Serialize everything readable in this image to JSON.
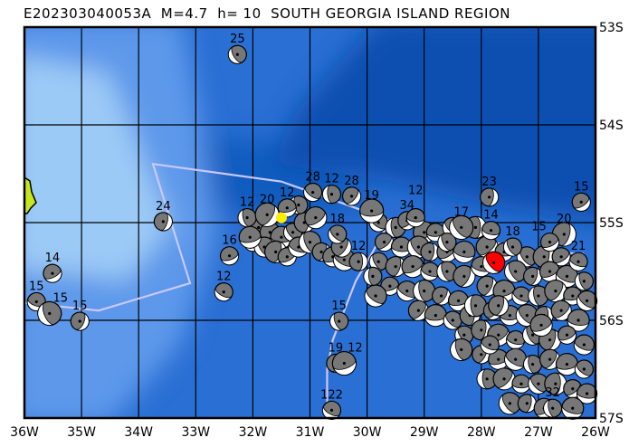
{
  "title": "E202303040053A  M=4.7  h= 10  SOUTH GEORGIA ISLAND REGION",
  "map": {
    "lon_range_west": [
      36,
      26
    ],
    "lat_range_south": [
      53,
      57
    ],
    "lon_labels": [
      "36W",
      "35W",
      "34W",
      "33W",
      "32W",
      "31W",
      "30W",
      "29W",
      "28W",
      "27W",
      "26W"
    ],
    "lat_labels": [
      "53S",
      "54S",
      "55S",
      "56S",
      "57S"
    ],
    "colors": {
      "deep": "#0a4fb0",
      "mid": "#2a6fd4",
      "shallow": "#5d98ea",
      "shelf": "#9ccaf6",
      "land": "#c8e61e",
      "boundary": "#c8c8f8",
      "epicenter": "#ffee00",
      "current_event": "#ff0000",
      "mechanism_fill": "#777777"
    },
    "epicenter": {
      "lon_w": 31.5,
      "lat_s": 54.95
    },
    "current_event": {
      "lon_w": 27.78,
      "lat_s": 55.41
    },
    "events_labeled": [
      [
        32.27,
        53.28,
        "25"
      ],
      [
        33.57,
        54.99,
        "24"
      ],
      [
        35.51,
        55.52,
        "14"
      ],
      [
        35.79,
        55.81,
        "15"
      ],
      [
        35.56,
        55.93,
        "15"
      ],
      [
        35.03,
        56.01,
        "15"
      ],
      [
        32.41,
        55.34,
        "16"
      ],
      [
        32.51,
        55.71,
        "12"
      ],
      [
        32.1,
        54.95,
        "12"
      ],
      [
        31.75,
        54.92,
        "20"
      ],
      [
        31.4,
        54.85,
        "12"
      ],
      [
        30.95,
        54.69,
        "28"
      ],
      [
        30.62,
        54.71,
        "12"
      ],
      [
        30.27,
        54.73,
        "28"
      ],
      [
        29.92,
        54.88,
        "19"
      ],
      [
        30.52,
        55.12,
        "18"
      ],
      [
        30.15,
        55.4,
        "12"
      ],
      [
        29.3,
        54.98,
        "34"
      ],
      [
        29.15,
        54.95,
        "12"
      ],
      [
        28.35,
        55.05,
        "17"
      ],
      [
        27.86,
        54.74,
        "23"
      ],
      [
        26.25,
        54.79,
        "15"
      ],
      [
        27.83,
        55.08,
        "14"
      ],
      [
        27.45,
        55.25,
        "18"
      ],
      [
        26.55,
        55.12,
        "20"
      ],
      [
        26.8,
        55.2,
        "15"
      ],
      [
        26.3,
        55.4,
        "21"
      ],
      [
        30.49,
        56.01,
        "15"
      ],
      [
        30.55,
        56.44,
        "19"
      ],
      [
        30.4,
        56.44,
        "12"
      ],
      [
        30.62,
        56.92,
        "122"
      ],
      [
        26.75,
        56.9,
        "32"
      ]
    ],
    "events": [
      [
        31.9,
        55.05
      ],
      [
        31.7,
        55.1
      ],
      [
        31.5,
        55.15
      ],
      [
        31.3,
        55.1
      ],
      [
        31.1,
        55.0
      ],
      [
        30.9,
        54.95
      ],
      [
        32.0,
        55.2
      ],
      [
        31.8,
        55.25
      ],
      [
        31.6,
        55.3
      ],
      [
        31.4,
        55.35
      ],
      [
        31.2,
        55.25
      ],
      [
        31.0,
        55.2
      ],
      [
        30.8,
        55.3
      ],
      [
        30.6,
        55.35
      ],
      [
        30.4,
        55.38
      ],
      [
        31.2,
        54.82
      ],
      [
        30.45,
        55.25
      ],
      [
        32.05,
        55.15
      ],
      [
        29.8,
        55.0
      ],
      [
        29.5,
        55.05
      ],
      [
        29.0,
        55.1
      ],
      [
        28.8,
        55.1
      ],
      [
        28.5,
        55.05
      ],
      [
        28.1,
        55.05
      ],
      [
        29.7,
        55.2
      ],
      [
        29.4,
        55.25
      ],
      [
        29.1,
        55.25
      ],
      [
        28.9,
        55.3
      ],
      [
        28.6,
        55.3
      ],
      [
        28.3,
        55.3
      ],
      [
        29.8,
        55.4
      ],
      [
        29.5,
        55.45
      ],
      [
        29.2,
        55.45
      ],
      [
        28.9,
        55.5
      ],
      [
        28.6,
        55.5
      ],
      [
        28.3,
        55.55
      ],
      [
        29.6,
        55.65
      ],
      [
        29.3,
        55.7
      ],
      [
        29.0,
        55.7
      ],
      [
        28.7,
        55.75
      ],
      [
        28.4,
        55.8
      ],
      [
        29.85,
        55.75
      ],
      [
        29.9,
        55.55
      ],
      [
        29.1,
        55.9
      ],
      [
        28.8,
        55.95
      ],
      [
        28.5,
        56.0
      ],
      [
        28.2,
        55.95
      ],
      [
        27.9,
        55.25
      ],
      [
        27.6,
        55.3
      ],
      [
        27.2,
        55.35
      ],
      [
        26.9,
        55.35
      ],
      [
        26.6,
        55.35
      ],
      [
        28.0,
        55.45
      ],
      [
        27.4,
        55.5
      ],
      [
        27.1,
        55.55
      ],
      [
        26.8,
        55.5
      ],
      [
        26.5,
        55.55
      ],
      [
        26.2,
        55.6
      ],
      [
        27.9,
        55.65
      ],
      [
        27.6,
        55.7
      ],
      [
        27.3,
        55.75
      ],
      [
        27.0,
        55.75
      ],
      [
        26.7,
        55.7
      ],
      [
        26.4,
        55.75
      ],
      [
        26.15,
        55.8
      ],
      [
        28.1,
        55.85
      ],
      [
        27.8,
        55.9
      ],
      [
        27.5,
        55.95
      ],
      [
        27.2,
        55.95
      ],
      [
        26.9,
        55.95
      ],
      [
        26.6,
        55.9
      ],
      [
        26.3,
        56.0
      ],
      [
        28.3,
        56.15
      ],
      [
        28.0,
        56.1
      ],
      [
        27.7,
        56.15
      ],
      [
        27.4,
        56.2
      ],
      [
        27.1,
        56.15
      ],
      [
        26.8,
        56.2
      ],
      [
        26.5,
        56.15
      ],
      [
        26.2,
        56.25
      ],
      [
        28.35,
        56.3
      ],
      [
        28.0,
        56.35
      ],
      [
        27.7,
        56.4
      ],
      [
        27.4,
        56.4
      ],
      [
        27.1,
        56.45
      ],
      [
        26.8,
        56.4
      ],
      [
        26.5,
        56.45
      ],
      [
        26.2,
        56.5
      ],
      [
        27.9,
        56.6
      ],
      [
        27.6,
        56.6
      ],
      [
        27.3,
        56.65
      ],
      [
        27.0,
        56.65
      ],
      [
        26.7,
        56.65
      ],
      [
        26.4,
        56.7
      ],
      [
        26.15,
        56.75
      ],
      [
        27.5,
        56.85
      ],
      [
        27.2,
        56.85
      ],
      [
        26.9,
        56.9
      ],
      [
        26.4,
        56.9
      ],
      [
        28.6,
        55.2
      ],
      [
        27.7,
        55.85
      ],
      [
        26.95,
        56.05
      ],
      [
        27.85,
        56.25
      ]
    ]
  }
}
